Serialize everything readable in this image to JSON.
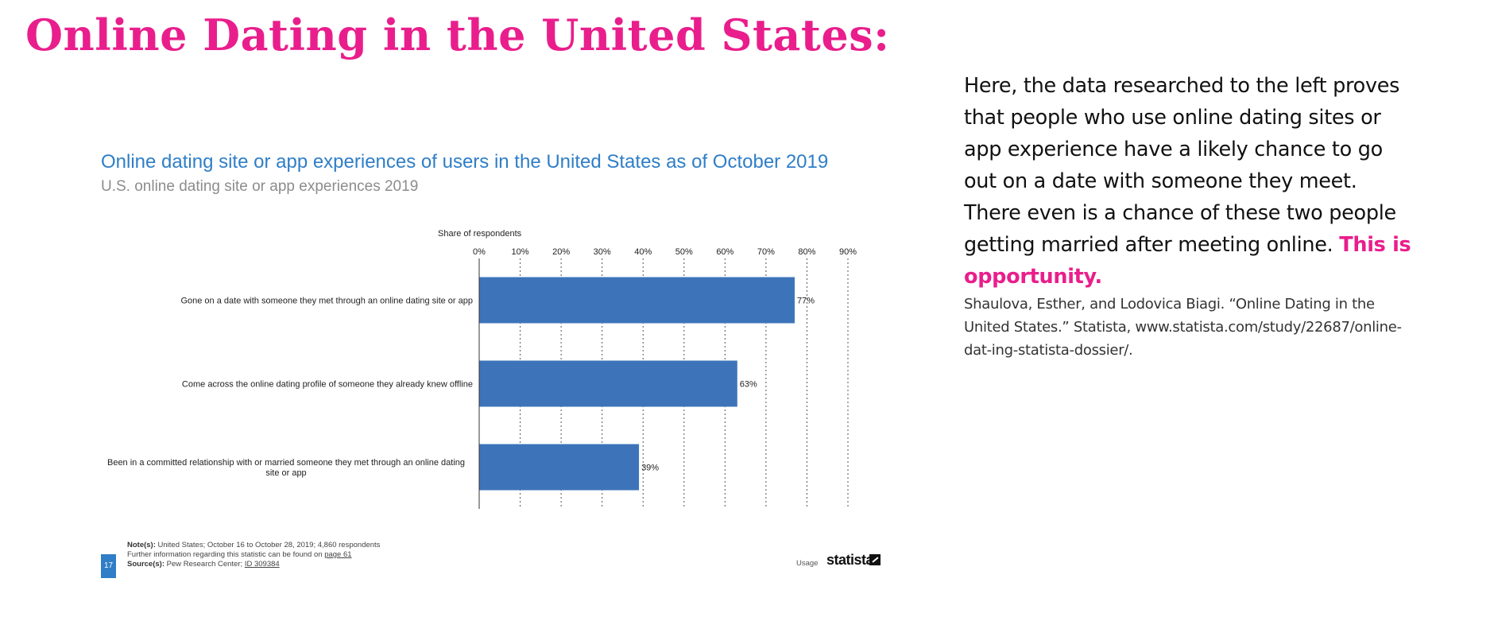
{
  "slide": {
    "title": "Online Dating in the United States:",
    "body_text": "Here, the data researched to the left proves that people who use online dating sites or app experience have a likely chance to go out on a date with someone they meet. There even is a chance of these two people getting married after meeting online.",
    "body_highlight": "This is opportunity.",
    "citation": "Shaulova, Esther, and Lodovica Biagi. “Online Dating in the United States.” Statista, www.statista.com/study/22687/online-dat-ing-statista-dossier/."
  },
  "chart_data": {
    "type": "bar",
    "orientation": "horizontal",
    "title": "Online dating site or app experiences of users in the United States as of October 2019",
    "subtitle": "U.S. online dating site or app experiences 2019",
    "xlabel": "Share of respondents",
    "ylabel": "",
    "xlim": [
      0,
      90
    ],
    "x_ticks": [
      "0%",
      "10%",
      "20%",
      "30%",
      "40%",
      "50%",
      "60%",
      "70%",
      "80%",
      "90%"
    ],
    "grid": "vertical dotted",
    "categories": [
      "Gone on a date with someone they met through an online dating site or app",
      "Come across the online dating profile of someone they already knew offline",
      "Been in a committed relationship with or married someone they met through an online dating site or app"
    ],
    "values": [
      77,
      63,
      39
    ],
    "data_labels": [
      "77%",
      "63%",
      "39%"
    ],
    "bar_color": "#3d74b9"
  },
  "footer": {
    "notes_label": "Note(s):",
    "notes_text": "United States; October 16 to October 28, 2019; 4,860 respondents",
    "further_info": "Further information regarding this statistic can be found on",
    "page_ref": "page 61",
    "sources_label": "Source(s):",
    "sources_text": "Pew Research Center;",
    "source_id": "ID 309384",
    "page_number": "17",
    "usage": "Usage",
    "brand": "statista"
  }
}
